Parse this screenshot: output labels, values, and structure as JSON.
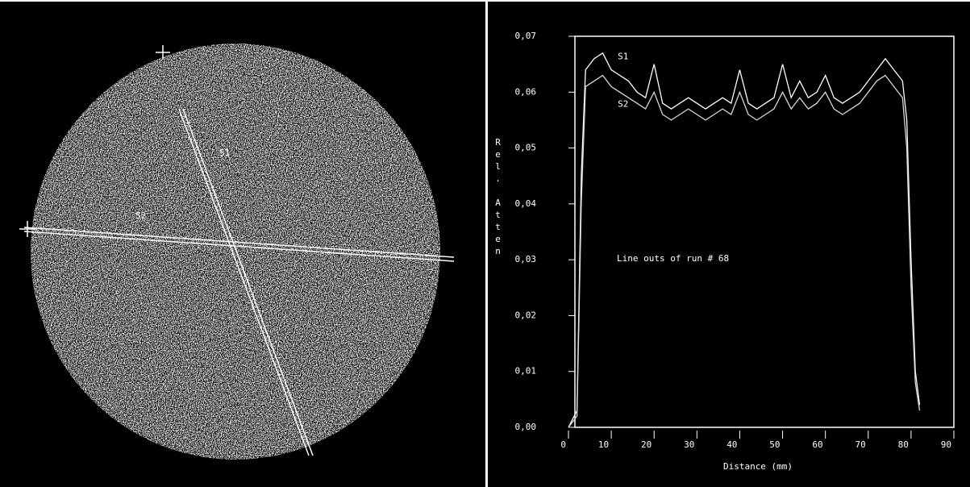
{
  "image": {
    "labels": [
      "S1",
      "S2"
    ]
  },
  "chart_data": {
    "type": "line",
    "ylabel": "Rel. Atten",
    "xlabel": "Distance (mm)",
    "annotation": "Line outs of run # 68",
    "x": [
      0,
      2,
      3,
      4,
      6,
      8,
      10,
      12,
      14,
      16,
      18,
      20,
      22,
      24,
      26,
      28,
      30,
      32,
      34,
      36,
      38,
      40,
      42,
      44,
      46,
      48,
      50,
      52,
      54,
      56,
      58,
      60,
      62,
      64,
      66,
      68,
      70,
      72,
      74,
      76,
      78,
      79,
      80,
      81,
      82
    ],
    "series": [
      {
        "name": "S1",
        "color": "#ffffff",
        "values": [
          0.0,
          0.003,
          0.045,
          0.064,
          0.066,
          0.067,
          0.064,
          0.063,
          0.062,
          0.06,
          0.059,
          0.065,
          0.058,
          0.057,
          0.058,
          0.059,
          0.058,
          0.057,
          0.058,
          0.059,
          0.058,
          0.064,
          0.058,
          0.057,
          0.058,
          0.059,
          0.065,
          0.059,
          0.062,
          0.059,
          0.06,
          0.063,
          0.059,
          0.058,
          0.059,
          0.06,
          0.062,
          0.064,
          0.066,
          0.064,
          0.062,
          0.055,
          0.03,
          0.01,
          0.004
        ]
      },
      {
        "name": "S2",
        "color": "#d8d8d8",
        "values": [
          0.0,
          0.002,
          0.04,
          0.061,
          0.062,
          0.063,
          0.061,
          0.06,
          0.059,
          0.058,
          0.057,
          0.06,
          0.056,
          0.055,
          0.056,
          0.057,
          0.056,
          0.055,
          0.056,
          0.057,
          0.056,
          0.06,
          0.056,
          0.055,
          0.056,
          0.057,
          0.06,
          0.057,
          0.059,
          0.057,
          0.058,
          0.06,
          0.057,
          0.056,
          0.057,
          0.058,
          0.06,
          0.062,
          0.063,
          0.061,
          0.059,
          0.05,
          0.025,
          0.008,
          0.003
        ]
      }
    ],
    "xlim": [
      0,
      90
    ],
    "xticks": [
      0,
      10,
      20,
      30,
      40,
      50,
      60,
      70,
      80,
      90
    ],
    "ylim": [
      0,
      0.07
    ],
    "yticks": [
      {
        "value": 0,
        "label": "0,00"
      },
      {
        "value": 0.01,
        "label": "0,01"
      },
      {
        "value": 0.02,
        "label": "0,02"
      },
      {
        "value": 0.03,
        "label": "0,03"
      },
      {
        "value": 0.04,
        "label": "0,04"
      },
      {
        "value": 0.05,
        "label": "0,05"
      },
      {
        "value": 0.06,
        "label": "0,06"
      },
      {
        "value": 0.07,
        "label": "0,07"
      }
    ],
    "grid": false
  }
}
